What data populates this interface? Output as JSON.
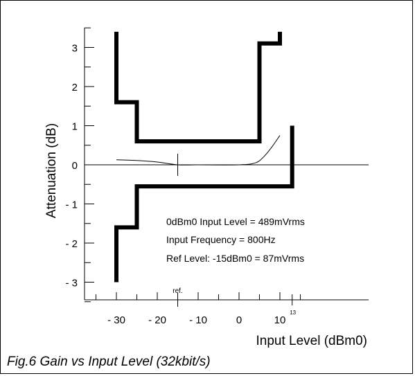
{
  "chart_data": {
    "type": "line",
    "xlabel": "Input Level (dBm0)",
    "ylabel": "Attenuation (dB)",
    "xlim": [
      -35,
      15
    ],
    "ylim": [
      -3.4,
      3.6
    ],
    "x_ticks": [
      -30,
      -20,
      -10,
      0,
      10
    ],
    "x_tick_labels": [
      "- 30",
      "- 20",
      "- 10",
      "0",
      "10"
    ],
    "y_ticks": [
      -3,
      -2,
      -1,
      0,
      1,
      2,
      3
    ],
    "y_tick_labels": [
      "- 3",
      "- 2",
      "- 1",
      "0",
      "1",
      "2",
      "3"
    ],
    "x_extra_labels": [
      {
        "x": -15,
        "text": "ref."
      },
      {
        "x": 13,
        "text": "13"
      }
    ],
    "series": [
      {
        "style": "mask",
        "values": [
          [
            -30,
            3.4
          ],
          [
            -30,
            1.6
          ],
          [
            -25,
            1.6
          ],
          [
            -25,
            0.6
          ],
          [
            5,
            0.6
          ],
          [
            5,
            3.1
          ],
          [
            10,
            3.1
          ],
          [
            10,
            3.4
          ]
        ]
      },
      {
        "style": "mask",
        "values": [
          [
            -30,
            -3.0
          ],
          [
            -30,
            -1.6
          ],
          [
            -25,
            -1.6
          ],
          [
            -25,
            -0.55
          ],
          [
            13,
            -0.55
          ],
          [
            13,
            1.0
          ]
        ]
      },
      {
        "style": "measured",
        "values": [
          [
            -30,
            0.13
          ],
          [
            -25,
            0.11
          ],
          [
            -20,
            0.07
          ],
          [
            -15,
            0.0
          ],
          [
            -10,
            0.0
          ],
          [
            0,
            0.0
          ],
          [
            4,
            0.05
          ],
          [
            6,
            0.2
          ],
          [
            8,
            0.45
          ],
          [
            10,
            0.75
          ]
        ]
      }
    ],
    "annotations": [
      "0dBm0 Input Level = 489mVrms",
      "Input Frequency = 800Hz",
      "Ref Level: -15dBm0 = 87mVrms"
    ]
  },
  "caption": "Fig.6 Gain vs Input Level (32kbit/s)"
}
